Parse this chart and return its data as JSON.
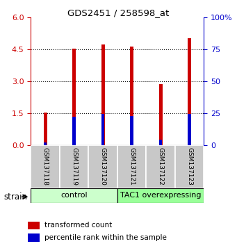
{
  "title": "GDS2451 / 258598_at",
  "samples": [
    "GSM137118",
    "GSM137119",
    "GSM137120",
    "GSM137121",
    "GSM137122",
    "GSM137123"
  ],
  "red_values": [
    1.52,
    4.52,
    4.72,
    4.62,
    2.88,
    5.02
  ],
  "blue_values_pct": [
    2.0,
    22.0,
    24.5,
    23.0,
    4.5,
    24.5
  ],
  "ylim_left": [
    0,
    6
  ],
  "ylim_right": [
    0,
    100
  ],
  "yticks_left": [
    0,
    1.5,
    3,
    4.5,
    6
  ],
  "yticks_right": [
    0,
    25,
    50,
    75,
    100
  ],
  "ytick_labels_right": [
    "0",
    "25",
    "50",
    "75",
    "100%"
  ],
  "group_labels": [
    "control",
    "TAC1 overexpressing"
  ],
  "group_ranges": [
    [
      0,
      3
    ],
    [
      3,
      6
    ]
  ],
  "group_colors_light": [
    "#ccffcc",
    "#99ff99"
  ],
  "bar_color_red": "#cc0000",
  "bar_color_blue": "#0000cc",
  "bar_width": 0.12,
  "blue_bar_width": 0.1,
  "legend_red": "transformed count",
  "legend_blue": "percentile rank within the sample",
  "strain_label": "strain",
  "left_axis_color": "#cc0000",
  "right_axis_color": "#0000cc",
  "label_box_color": "#c8c8c8",
  "gridline_ticks": [
    1.5,
    3.0,
    4.5
  ]
}
